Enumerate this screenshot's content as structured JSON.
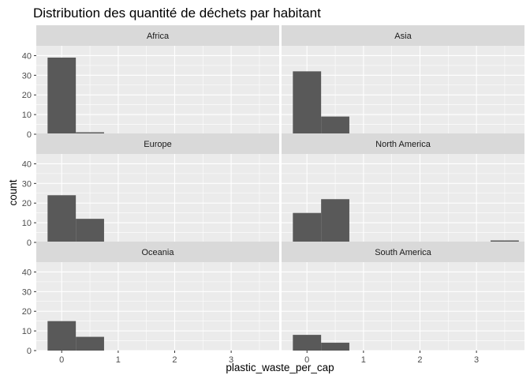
{
  "chart_data": {
    "type": "bar",
    "title": "Distribution des quantité de déchets par habitant",
    "xlabel": "plastic_waste_per_cap",
    "ylabel": "count",
    "xlim": [
      -0.45,
      3.85
    ],
    "ylim": [
      0,
      45
    ],
    "x_ticks": [
      0,
      1,
      2,
      3
    ],
    "y_ticks": [
      0,
      10,
      20,
      30,
      40
    ],
    "bin_width": 0.5,
    "grid": true,
    "colors": {
      "panel_bg": "#ebebeb",
      "strip_bg": "#d9d9d9",
      "grid_major": "#ffffff",
      "bar_fill": "#595959",
      "tick_color": "#333333"
    },
    "facets": [
      {
        "name": "Africa",
        "bins": [
          {
            "x": 0,
            "count": 39
          },
          {
            "x": 0.5,
            "count": 1
          }
        ]
      },
      {
        "name": "Asia",
        "bins": [
          {
            "x": 0,
            "count": 32
          },
          {
            "x": 0.5,
            "count": 9
          }
        ]
      },
      {
        "name": "Europe",
        "bins": [
          {
            "x": 0,
            "count": 24
          },
          {
            "x": 0.5,
            "count": 12
          }
        ]
      },
      {
        "name": "North America",
        "bins": [
          {
            "x": 0,
            "count": 15
          },
          {
            "x": 0.5,
            "count": 22
          },
          {
            "x": 3.5,
            "count": 1
          }
        ]
      },
      {
        "name": "Oceania",
        "bins": [
          {
            "x": 0,
            "count": 15
          },
          {
            "x": 0.5,
            "count": 7
          }
        ]
      },
      {
        "name": "South America",
        "bins": [
          {
            "x": 0,
            "count": 8
          },
          {
            "x": 0.5,
            "count": 4
          }
        ]
      }
    ]
  }
}
